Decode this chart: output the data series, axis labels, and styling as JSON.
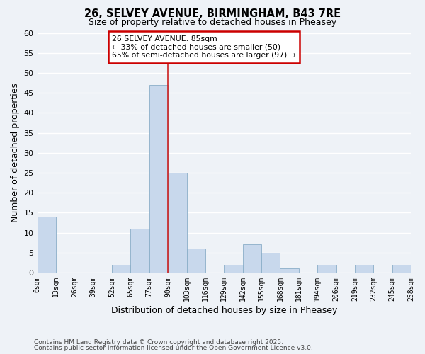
{
  "title": "26, SELVEY AVENUE, BIRMINGHAM, B43 7RE",
  "subtitle": "Size of property relative to detached houses in Pheasey",
  "xlabel": "Distribution of detached houses by size in Pheasey",
  "ylabel": "Number of detached properties",
  "bar_values": [
    14,
    0,
    0,
    0,
    2,
    11,
    47,
    25,
    6,
    0,
    2,
    7,
    5,
    1,
    0,
    2,
    0,
    2,
    0,
    2
  ],
  "bin_labels": [
    "0sqm",
    "13sqm",
    "26sqm",
    "39sqm",
    "52sqm",
    "65sqm",
    "77sqm",
    "90sqm",
    "103sqm",
    "116sqm",
    "129sqm",
    "142sqm",
    "155sqm",
    "168sqm",
    "181sqm",
    "194sqm",
    "206sqm",
    "219sqm",
    "232sqm",
    "245sqm",
    "258sqm"
  ],
  "bar_color": "#c8d8ec",
  "bar_edge_color": "#8aaec8",
  "ylim": [
    0,
    60
  ],
  "yticks": [
    0,
    5,
    10,
    15,
    20,
    25,
    30,
    35,
    40,
    45,
    50,
    55,
    60
  ],
  "annotation_title": "26 SELVEY AVENUE: 85sqm",
  "annotation_line1": "← 33% of detached houses are smaller (50)",
  "annotation_line2": "65% of semi-detached houses are larger (97) →",
  "annotation_box_color": "#ffffff",
  "annotation_border_color": "#cc0000",
  "footer_line1": "Contains HM Land Registry data © Crown copyright and database right 2025.",
  "footer_line2": "Contains public sector information licensed under the Open Government Licence v3.0.",
  "bg_color": "#eef2f7",
  "grid_color": "#ffffff",
  "property_line_x": 6.5,
  "property_line_color": "#cc2222"
}
